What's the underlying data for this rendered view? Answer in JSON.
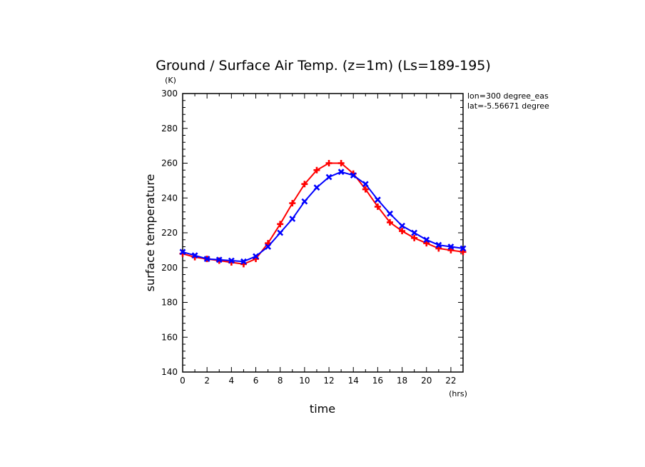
{
  "chart_data": {
    "type": "line",
    "title": "Ground / Surface Air Temp. (z=1m) (Ls=189-195)",
    "ylabel": "surface temperature",
    "xlabel": "time",
    "yunit": "(K)",
    "xunit": "(hrs)",
    "annotations": [
      "lon=300 degree_eas",
      "lat=-5.56671 degree"
    ],
    "xlim": [
      0,
      23
    ],
    "ylim": [
      140,
      300
    ],
    "xticks": [
      0,
      2,
      4,
      6,
      8,
      10,
      12,
      14,
      16,
      18,
      20,
      22
    ],
    "yticks": [
      140,
      160,
      180,
      200,
      220,
      240,
      260,
      280,
      300
    ],
    "grid": false,
    "x": [
      0,
      1,
      2,
      3,
      4,
      5,
      6,
      7,
      8,
      9,
      10,
      11,
      12,
      13,
      14,
      15,
      16,
      17,
      18,
      19,
      20,
      21,
      22,
      23
    ],
    "series": [
      {
        "color": "#ff0000",
        "marker": "plus",
        "values": [
          208,
          206,
          205,
          204,
          203,
          202,
          205,
          214,
          225,
          237,
          248,
          256,
          260,
          260,
          254,
          245,
          235,
          226,
          221,
          217,
          214,
          211,
          210,
          209
        ]
      },
      {
        "color": "#0000ff",
        "marker": "x",
        "values": [
          209,
          207,
          205,
          204.5,
          204,
          203.5,
          206.5,
          212,
          220,
          228,
          238,
          246,
          252,
          255,
          253,
          248,
          239,
          231,
          224,
          220,
          216,
          213,
          212,
          211
        ]
      }
    ]
  }
}
